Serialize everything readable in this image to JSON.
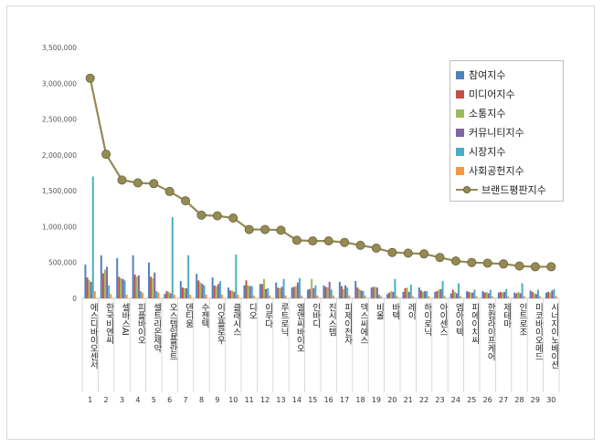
{
  "chart_data": {
    "type": "bar",
    "title": "",
    "xlabel": "",
    "ylabel": "",
    "ylim": [
      0,
      3500000
    ],
    "yticks": [
      "0",
      "500,000",
      "1,000,000",
      "1,500,000",
      "2,000,000",
      "2,500,000",
      "3,000,000",
      "3,500,000"
    ],
    "grid": false,
    "legend_position": "top-right",
    "ranks": [
      "1",
      "2",
      "3",
      "4",
      "5",
      "6",
      "7",
      "8",
      "9",
      "10",
      "11",
      "12",
      "13",
      "14",
      "15",
      "16",
      "17",
      "18",
      "19",
      "20",
      "21",
      "22",
      "23",
      "24",
      "25",
      "26",
      "27",
      "28",
      "29",
      "30"
    ],
    "categories": [
      "에스디바이오센서",
      "한국비엔씨",
      "셀바스AI",
      "피플바이오",
      "셀트리온제약",
      "오스템임플란트",
      "덴티움",
      "수젠텍",
      "이오플로우",
      "클래시스",
      "디오",
      "이루다",
      "루트로닉",
      "엘앤씨바이오",
      "인바디",
      "진시스템",
      "피제이전자",
      "덱스씨에스",
      "비올",
      "바텍",
      "레이",
      "하이로닉",
      "아이센스",
      "엠아이텍",
      "피에이치씨",
      "한컴라이프케어",
      "제테마",
      "인트로조",
      "미코바이오메드",
      "시너지이노베이션"
    ],
    "series": [
      {
        "name": "참여지수",
        "color": "#4f81bd",
        "type": "bar",
        "values": [
          470000,
          600000,
          560000,
          600000,
          500000,
          60000,
          240000,
          340000,
          290000,
          150000,
          180000,
          200000,
          220000,
          150000,
          120000,
          180000,
          230000,
          240000,
          150000,
          60000,
          90000,
          150000,
          90000,
          70000,
          100000,
          100000,
          80000,
          80000,
          110000,
          80000
        ]
      },
      {
        "name": "미디어지수",
        "color": "#c0504d",
        "type": "bar",
        "values": [
          290000,
          350000,
          300000,
          330000,
          300000,
          100000,
          150000,
          250000,
          180000,
          110000,
          250000,
          200000,
          150000,
          160000,
          130000,
          160000,
          170000,
          150000,
          160000,
          80000,
          140000,
          110000,
          100000,
          120000,
          90000,
          80000,
          90000,
          70000,
          90000,
          90000
        ]
      },
      {
        "name": "소통지수",
        "color": "#9bbb59",
        "type": "bar",
        "values": [
          260000,
          400000,
          280000,
          300000,
          280000,
          90000,
          140000,
          220000,
          170000,
          110000,
          180000,
          270000,
          140000,
          170000,
          270000,
          150000,
          130000,
          130000,
          160000,
          100000,
          150000,
          90000,
          120000,
          90000,
          80000,
          90000,
          80000,
          90000,
          70000,
          80000
        ]
      },
      {
        "name": "커뮤니티지수",
        "color": "#8064a2",
        "type": "bar",
        "values": [
          230000,
          440000,
          270000,
          320000,
          360000,
          70000,
          140000,
          200000,
          200000,
          90000,
          170000,
          130000,
          160000,
          220000,
          140000,
          230000,
          180000,
          110000,
          150000,
          90000,
          90000,
          100000,
          130000,
          70000,
          80000,
          70000,
          90000,
          70000,
          60000,
          110000
        ]
      },
      {
        "name": "시장지수",
        "color": "#4bacc6",
        "type": "bar",
        "values": [
          1700000,
          180000,
          250000,
          100000,
          100000,
          1130000,
          600000,
          180000,
          240000,
          610000,
          170000,
          140000,
          270000,
          280000,
          180000,
          120000,
          150000,
          100000,
          50000,
          270000,
          190000,
          100000,
          240000,
          210000,
          120000,
          120000,
          130000,
          210000,
          120000,
          130000
        ]
      },
      {
        "name": "사회공헌지수",
        "color": "#f79646",
        "type": "bar",
        "values": [
          100000,
          60000,
          50000,
          80000,
          80000,
          50000,
          50000,
          50000,
          50000,
          50000,
          40000,
          40000,
          40000,
          40000,
          40000,
          40000,
          40000,
          40000,
          30000,
          30000,
          30000,
          30000,
          30000,
          30000,
          30000,
          30000,
          30000,
          30000,
          30000,
          30000
        ]
      },
      {
        "name": "브랜드평판지수",
        "color": "#948a54",
        "type": "line",
        "values": [
          3070000,
          2010000,
          1650000,
          1610000,
          1600000,
          1490000,
          1360000,
          1160000,
          1150000,
          1120000,
          960000,
          960000,
          950000,
          810000,
          800000,
          800000,
          780000,
          740000,
          700000,
          640000,
          630000,
          620000,
          570000,
          520000,
          500000,
          490000,
          480000,
          450000,
          440000,
          440000
        ]
      }
    ]
  }
}
